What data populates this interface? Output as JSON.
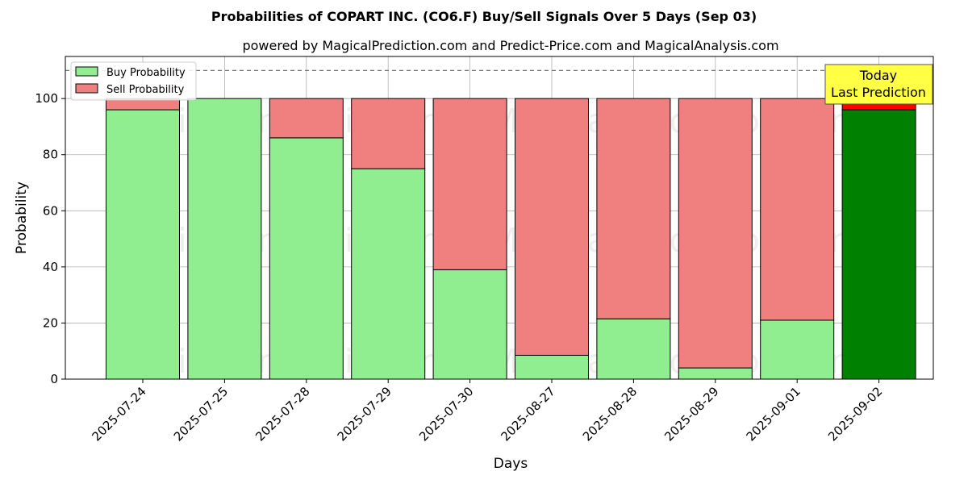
{
  "chart_data": {
    "type": "bar",
    "title": "Probabilities of COPART INC. (CO6.F) Buy/Sell Signals Over 5 Days (Sep 03)",
    "subtitle": "powered by MagicalPrediction.com and Predict-Price.com and MagicalAnalysis.com",
    "xlabel": "Days",
    "ylabel": "Probability",
    "ylim": [
      0,
      115
    ],
    "yticks": [
      0,
      20,
      40,
      60,
      80,
      100
    ],
    "grid": true,
    "legend_position": "top-left",
    "reference_line": 110,
    "categories": [
      "2025-07-24",
      "2025-07-25",
      "2025-07-28",
      "2025-07-29",
      "2025-07-30",
      "2025-08-27",
      "2025-08-28",
      "2025-08-29",
      "2025-09-01",
      "2025-09-02"
    ],
    "series": [
      {
        "name": "Buy Probability",
        "values": [
          96,
          100,
          86,
          75,
          39,
          8.5,
          21.5,
          4,
          21,
          96
        ],
        "color": "#90ee90",
        "last_color": "#008000"
      },
      {
        "name": "Sell Probability",
        "values": [
          4,
          0,
          14,
          25,
          61,
          91.5,
          78.5,
          96,
          79,
          4
        ],
        "color": "#f08080",
        "last_color": "#ff0000"
      }
    ],
    "annotation": {
      "line1": "Today",
      "line2": "Last Prediction",
      "color": "#ffff44"
    },
    "watermarks": [
      "MagicalAnalysis.com",
      "MagicalPrediction.com"
    ]
  }
}
